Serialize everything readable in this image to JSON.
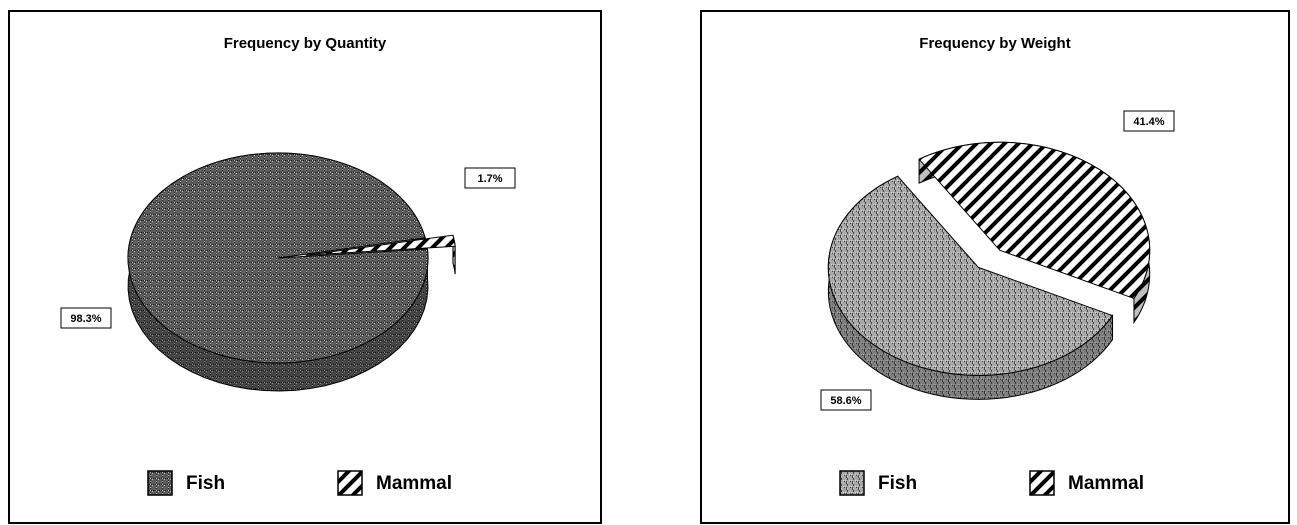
{
  "chart_data": [
    {
      "type": "pie",
      "title": "Frequency by Quantity",
      "categories": [
        "Fish",
        "Mammal"
      ],
      "values": [
        98.3,
        1.7
      ],
      "value_labels": [
        "98.3%",
        "1.7%"
      ],
      "colors": [
        "#5c5c5c",
        "#ffffff"
      ],
      "patterns": [
        "stipple",
        "hatch"
      ],
      "legend": "bottom"
    },
    {
      "type": "pie",
      "title": "Frequency by Weight",
      "categories": [
        "Fish",
        "Mammal"
      ],
      "values": [
        58.6,
        41.4
      ],
      "value_labels": [
        "58.6%",
        "41.4%"
      ],
      "colors": [
        "#a8a8a8",
        "#ffffff"
      ],
      "patterns": [
        "stipple",
        "hatch"
      ],
      "legend": "bottom"
    }
  ]
}
